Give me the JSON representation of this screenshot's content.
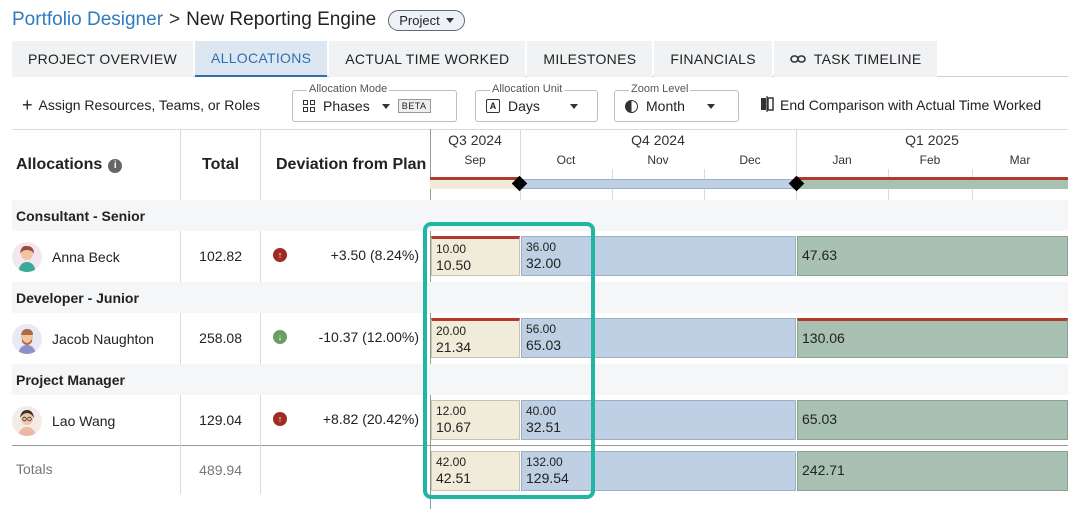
{
  "header": {
    "breadcrumb_link": "Portfolio Designer",
    "separator": ">",
    "current": "New Reporting Engine",
    "type_pill": "Project"
  },
  "tabs": [
    {
      "label": "PROJECT OVERVIEW",
      "active": false
    },
    {
      "label": "ALLOCATIONS",
      "active": true
    },
    {
      "label": "ACTUAL TIME WORKED",
      "active": false
    },
    {
      "label": "MILESTONES",
      "active": false
    },
    {
      "label": "FINANCIALS",
      "active": false
    },
    {
      "label": "TASK TIMELINE",
      "active": false,
      "icon": "link-icon"
    }
  ],
  "toolbar": {
    "assign_label": "Assign Resources, Teams, or Roles",
    "allocation_mode": {
      "label": "Allocation Mode",
      "value": "Phases",
      "badge": "BETA",
      "icon": "grid-icon"
    },
    "allocation_unit": {
      "label": "Allocation Unit",
      "value": "Days",
      "icon": "letter-a-icon",
      "icon_glyph": "A"
    },
    "zoom_level": {
      "label": "Zoom Level",
      "value": "Month",
      "icon": "half-circle-icon"
    },
    "end_comparison_label": "End Comparison with Actual Time Worked"
  },
  "table": {
    "col_allocations": "Allocations",
    "col_total": "Total",
    "col_deviation": "Deviation from Plan",
    "quarters": [
      "Q3 2024",
      "Q4 2024",
      "Q1 2025"
    ],
    "months": [
      "Sep",
      "Oct",
      "Nov",
      "Dec",
      "Jan",
      "Feb",
      "Mar"
    ],
    "groups": [
      {
        "name": "Consultant - Senior",
        "person": "Anna Beck",
        "total": "102.82",
        "deviation": "+3.50 (8.24%)",
        "direction": "up",
        "sep_top": "10.00",
        "sep_bottom": "10.50",
        "q4_top": "36.00",
        "q4_bottom": "32.00",
        "q1": "47.63"
      },
      {
        "name": "Developer - Junior",
        "person": "Jacob Naughton",
        "total": "258.08",
        "deviation": "-10.37 (12.00%)",
        "direction": "down",
        "sep_top": "20.00",
        "sep_bottom": "21.34",
        "q4_top": "56.00",
        "q4_bottom": "65.03",
        "q1": "130.06"
      },
      {
        "name": "Project Manager",
        "person": "Lao Wang",
        "total": "129.04",
        "deviation": "+8.82 (20.42%)",
        "direction": "up",
        "sep_top": "12.00",
        "sep_bottom": "10.67",
        "q4_top": "40.00",
        "q4_bottom": "32.51",
        "q1": "65.03"
      }
    ],
    "totals": {
      "label": "Totals",
      "total": "489.94",
      "sep_top": "42.00",
      "sep_bottom": "42.51",
      "q4_top": "132.00",
      "q4_bottom": "129.54",
      "q1": "242.71"
    }
  },
  "colors": {
    "accent": "#2f7bbf",
    "sep_fill": "#f1ebd9",
    "q4_fill": "#bfd0e4",
    "q1_fill": "#a9c1b2",
    "over_line": "#b23a2c",
    "highlight": "#1fb6a3"
  }
}
